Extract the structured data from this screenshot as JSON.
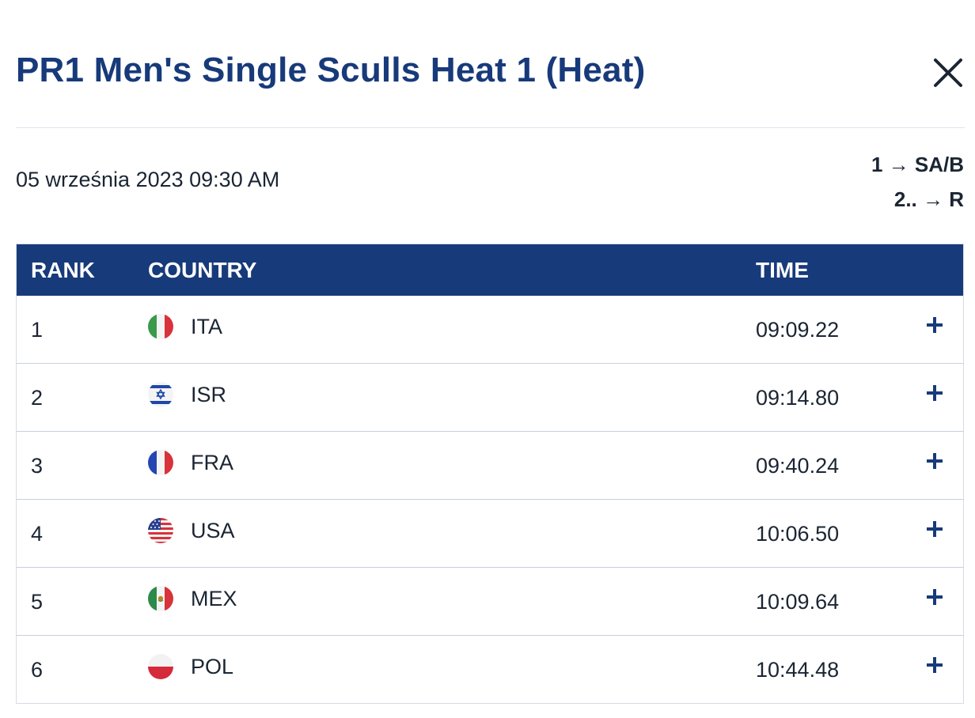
{
  "modal": {
    "title": "PR1 Men's Single Sculls Heat 1 (Heat)",
    "close_icon": "close-icon"
  },
  "race": {
    "date": "05 września 2023 09:30 AM",
    "progression": [
      {
        "text": "1 → SA/B"
      },
      {
        "text": "2.. → R"
      }
    ]
  },
  "table": {
    "headers": {
      "rank": "RANK",
      "country": "COUNTRY",
      "time": "TIME"
    },
    "rows": [
      {
        "rank": "1",
        "country": "ITA",
        "time": "09:09.22",
        "flag": "italy-flag-icon"
      },
      {
        "rank": "2",
        "country": "ISR",
        "time": "09:14.80",
        "flag": "israel-flag-icon"
      },
      {
        "rank": "3",
        "country": "FRA",
        "time": "09:40.24",
        "flag": "france-flag-icon"
      },
      {
        "rank": "4",
        "country": "USA",
        "time": "10:06.50",
        "flag": "usa-flag-icon"
      },
      {
        "rank": "5",
        "country": "MEX",
        "time": "10:09.64",
        "flag": "mexico-flag-icon"
      },
      {
        "rank": "6",
        "country": "POL",
        "time": "10:44.48",
        "flag": "poland-flag-icon"
      }
    ],
    "expand_icon": "plus-icon"
  },
  "colors": {
    "brand_navy": "#173a7a",
    "text_dark": "#1b2533",
    "divider": "#dde2ea"
  }
}
